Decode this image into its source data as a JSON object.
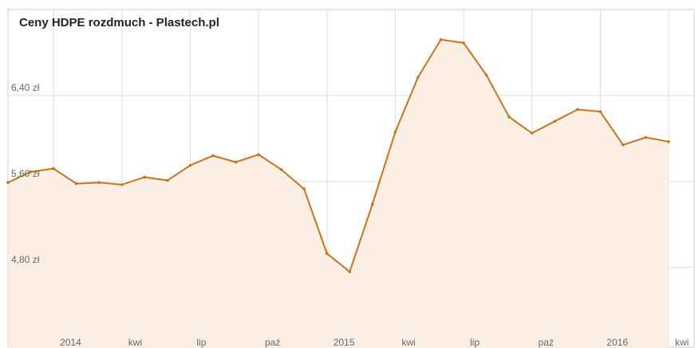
{
  "chart_data": {
    "type": "line",
    "title": "Ceny HDPE rozdmuch - Plastech.pl",
    "categories": [
      null,
      null,
      "2014",
      null,
      null,
      "kwi",
      null,
      null,
      "lip",
      null,
      null,
      "paź",
      null,
      null,
      "2015",
      null,
      null,
      "kwi",
      null,
      null,
      "lip",
      null,
      null,
      "paź",
      null,
      null,
      "2016",
      null,
      null,
      "kwi"
    ],
    "values": [
      5.59,
      5.69,
      5.72,
      5.58,
      5.59,
      5.57,
      5.64,
      5.61,
      5.75,
      5.84,
      5.78,
      5.85,
      5.71,
      5.53,
      4.93,
      4.76,
      5.39,
      6.06,
      6.57,
      6.92,
      6.89,
      6.59,
      6.2,
      6.05,
      6.16,
      6.27,
      6.25,
      5.94,
      6.01,
      5.97
    ],
    "color": "#c8741c",
    "fill": "#fbefe5",
    "ylim": [
      4.05,
      7.2
    ],
    "yticks": [
      {
        "value": 4.8,
        "label": "4,80 zł"
      },
      {
        "value": 5.6,
        "label": "5,60 zł"
      },
      {
        "value": 6.4,
        "label": "6,40 zł"
      }
    ],
    "grid": true
  }
}
